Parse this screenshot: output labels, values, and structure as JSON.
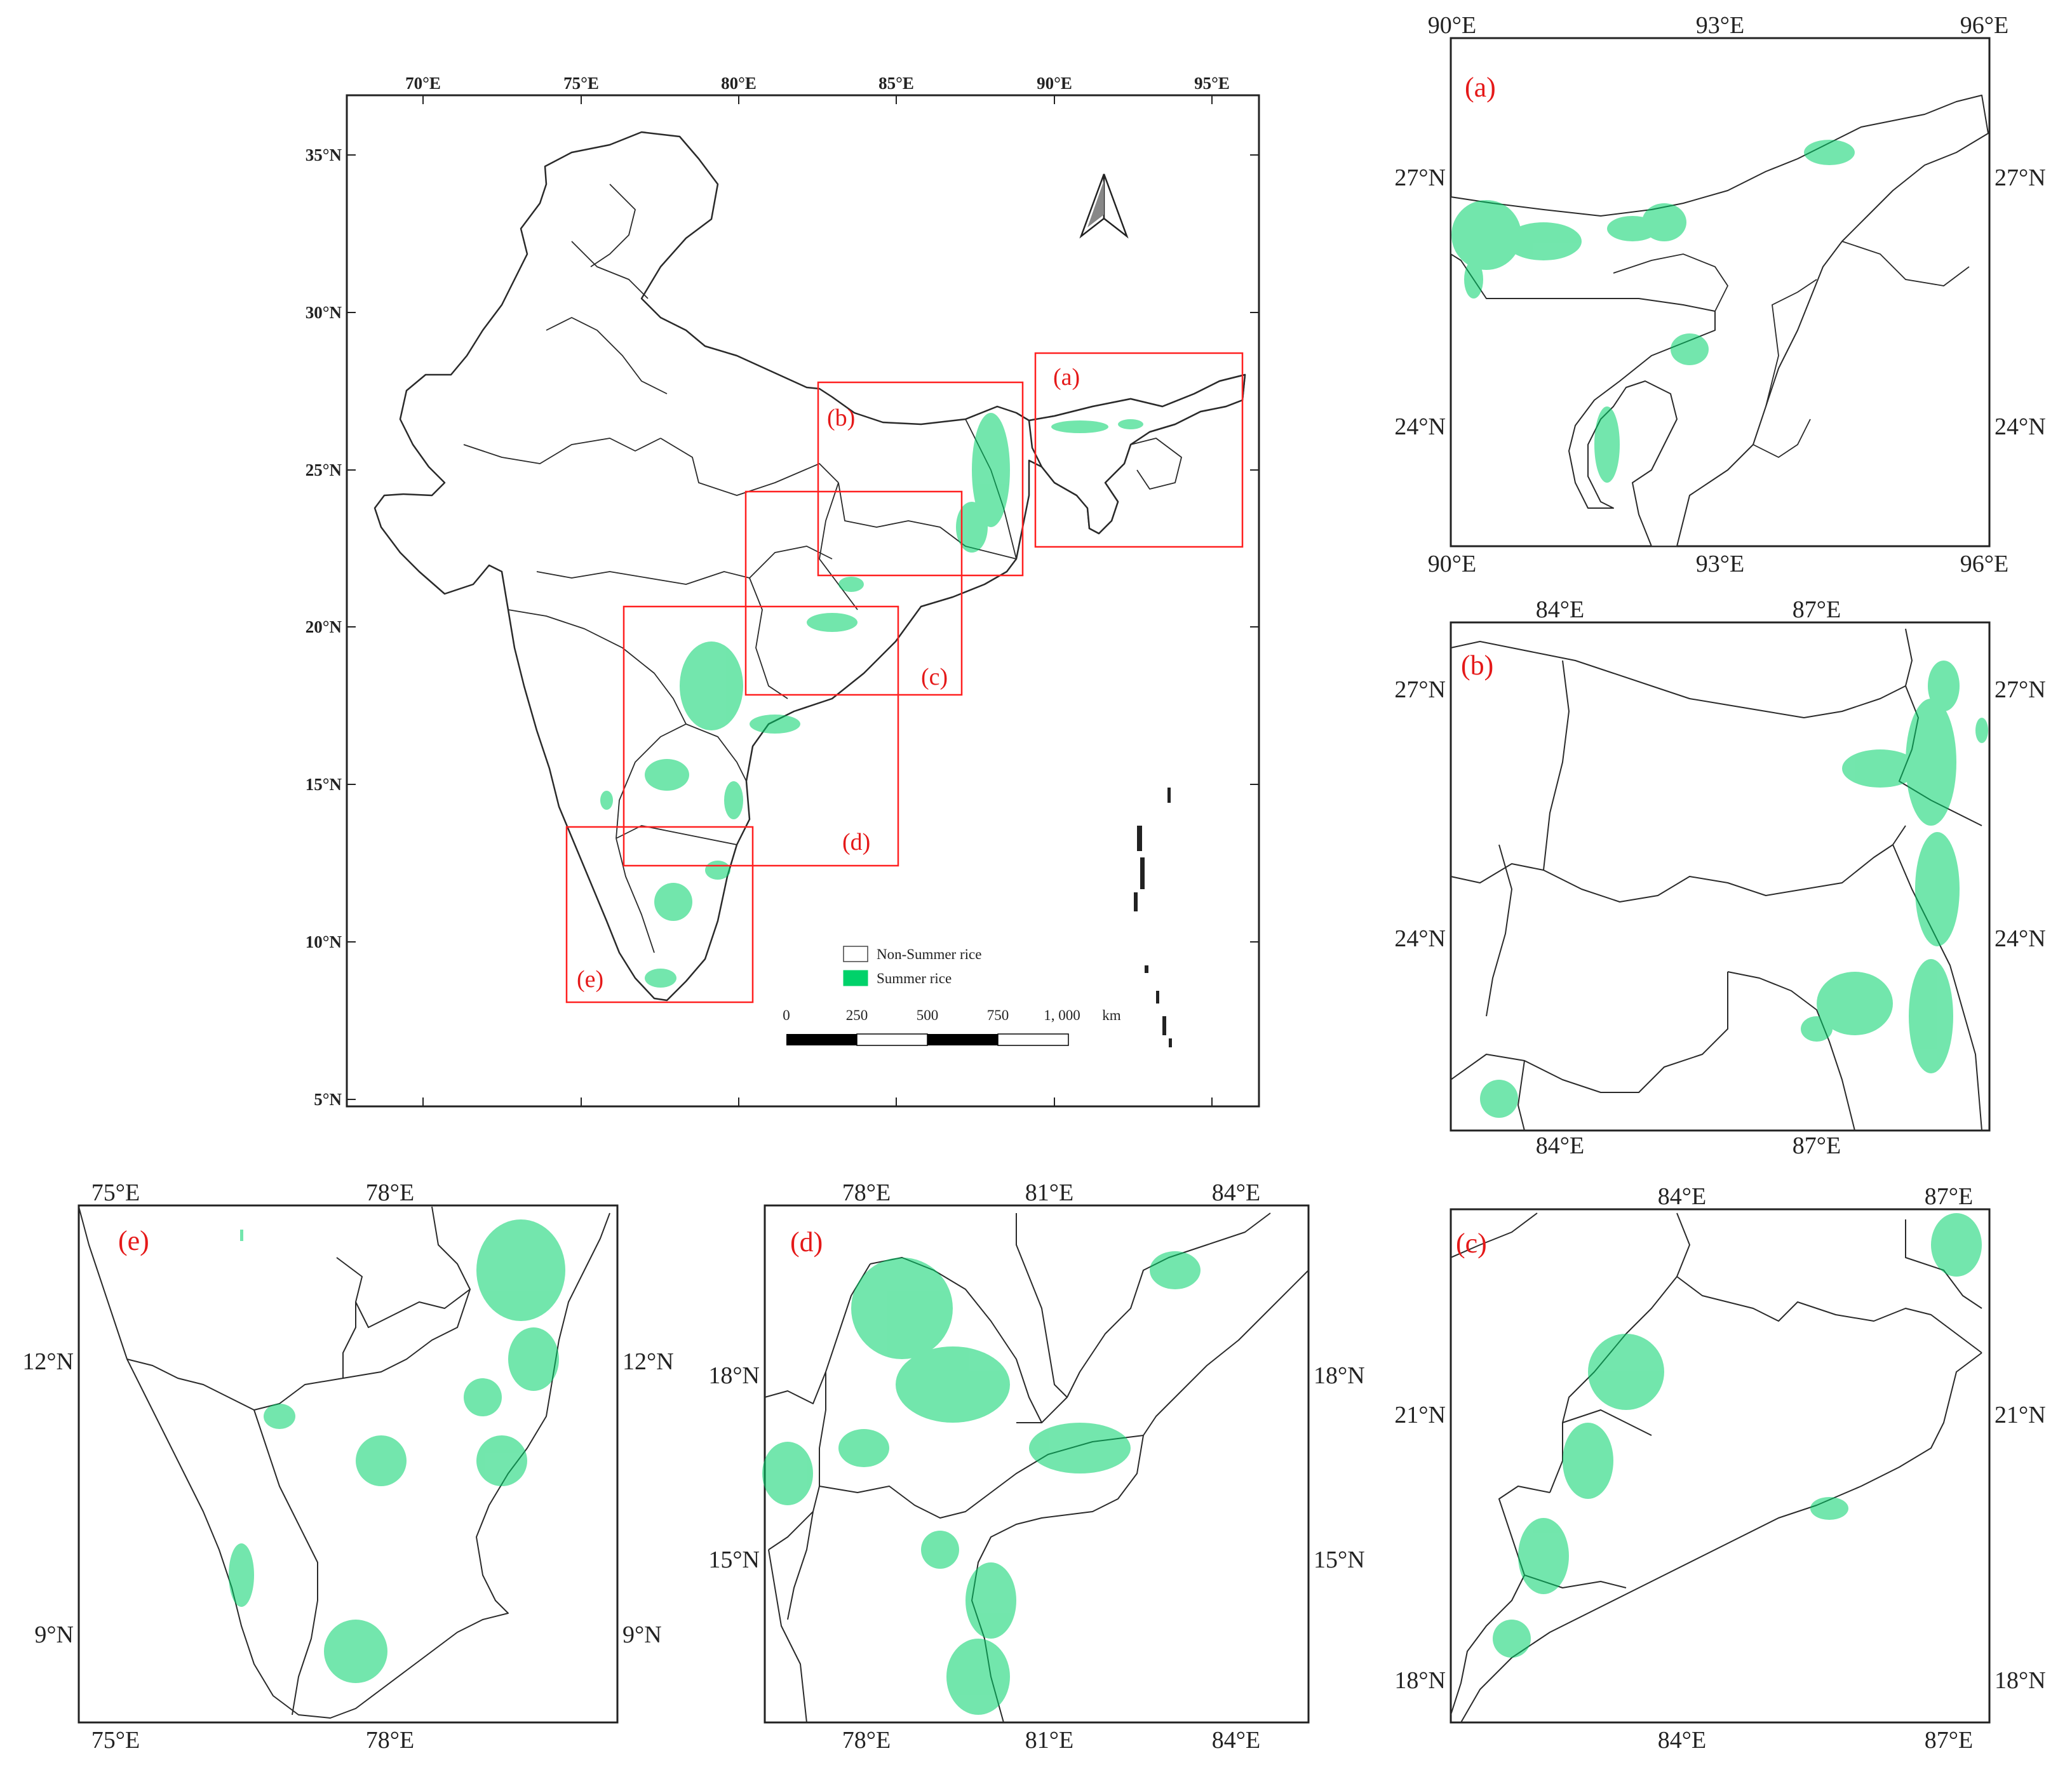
{
  "colors": {
    "frame": "#222222",
    "boundary": "#2a2a2a",
    "inset_box": "#ff2020",
    "panel_label": "#e51919",
    "summer_rice": "#00d26a",
    "non_summer_rice": "#ffffff"
  },
  "main_map": {
    "top_lon_labels": [
      "70°E",
      "75°E",
      "80°E",
      "85°E",
      "90°E",
      "95°E"
    ],
    "left_lat_labels": [
      "35°N",
      "30°N",
      "25°N",
      "20°N",
      "15°N",
      "10°N",
      "5°N"
    ],
    "north_arrow_icon": "north-arrow",
    "inset_labels": {
      "a": "(a)",
      "b": "(b)",
      "c": "(c)",
      "d": "(d)",
      "e": "(e)"
    },
    "legend": {
      "non_summer": "Non-Summer rice",
      "summer": "Summer rice"
    },
    "scale_bar": {
      "ticks": [
        "0",
        "250",
        "500",
        "750",
        "1, 000"
      ],
      "unit": "km"
    }
  },
  "panel_a": {
    "label": "(a)",
    "lon_labels": [
      "90°E",
      "93°E",
      "96°E"
    ],
    "lat_labels": [
      "27°N",
      "24°N"
    ]
  },
  "panel_b": {
    "label": "(b)",
    "lon_labels": [
      "84°E",
      "87°E"
    ],
    "lat_labels": [
      "27°N",
      "24°N"
    ]
  },
  "panel_c": {
    "label": "(c)",
    "lon_labels": [
      "84°E",
      "87°E"
    ],
    "lat_labels": [
      "21°N",
      "18°N"
    ]
  },
  "panel_d": {
    "label": "(d)",
    "lon_labels": [
      "78°E",
      "81°E",
      "84°E"
    ],
    "lat_labels": [
      "18°N",
      "15°N"
    ]
  },
  "panel_e": {
    "label": "(e)",
    "lon_labels": [
      "75°E",
      "78°E"
    ],
    "lat_labels": [
      "12°N",
      "9°N"
    ]
  }
}
